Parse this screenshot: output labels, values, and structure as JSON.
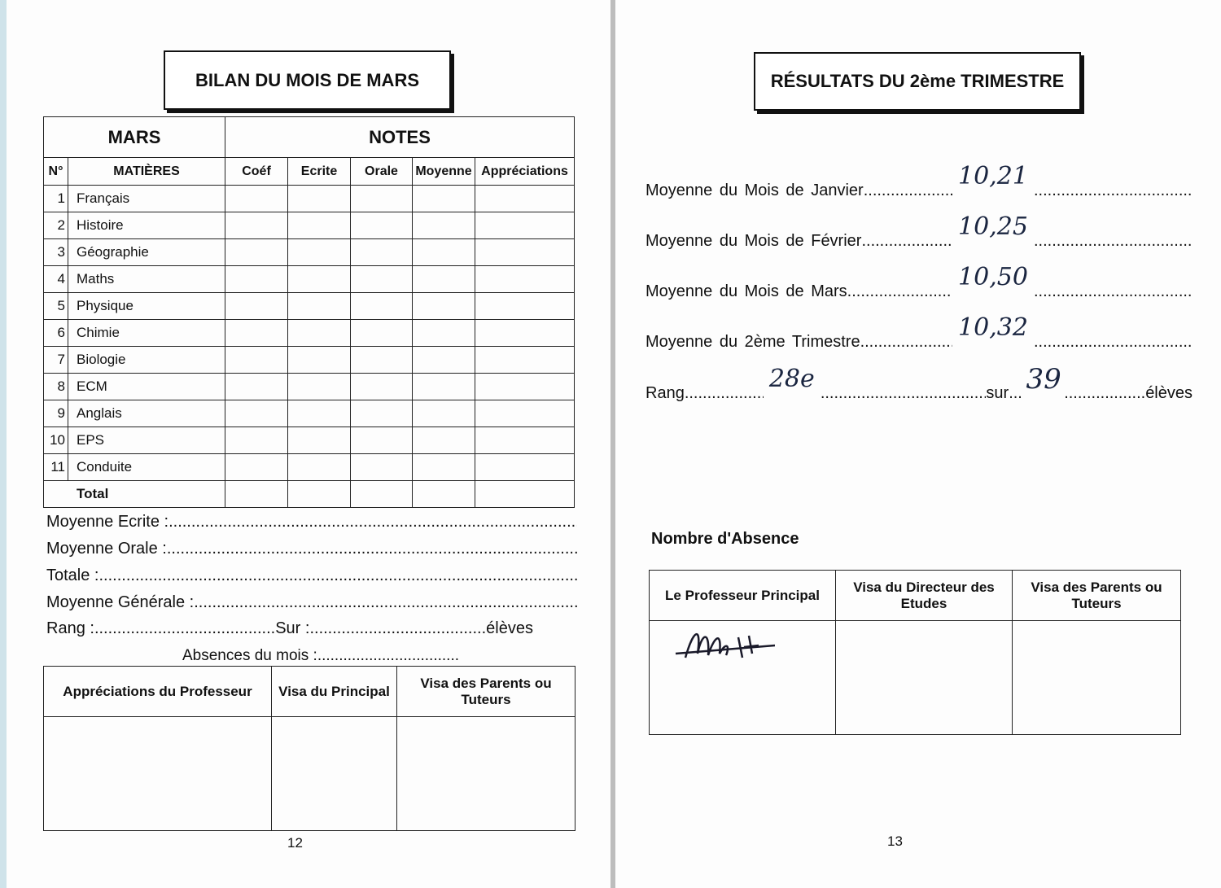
{
  "left": {
    "title": "BILAN DU MOIS  DE MARS",
    "table": {
      "month": "MARS",
      "notes": "NOTES",
      "headers": [
        "N°",
        "MATIÈRES",
        "Coéf",
        "Ecrite",
        "Orale",
        "Moyenne",
        "Appréciations"
      ],
      "rows": [
        {
          "n": "1",
          "s": "Français"
        },
        {
          "n": "2",
          "s": "Histoire"
        },
        {
          "n": "3",
          "s": "Géographie"
        },
        {
          "n": "4",
          "s": "Maths"
        },
        {
          "n": "5",
          "s": "Physique"
        },
        {
          "n": "6",
          "s": "Chimie"
        },
        {
          "n": "7",
          "s": "Biologie"
        },
        {
          "n": "8",
          "s": "ECM"
        },
        {
          "n": "9",
          "s": "Anglais"
        },
        {
          "n": "10",
          "s": "EPS"
        },
        {
          "n": "11",
          "s": "Conduite"
        }
      ],
      "total": "Total"
    },
    "fields": [
      "Moyenne Ecrite :",
      "Moyenne Orale :",
      "Totale :",
      "Moyenne Générale :"
    ],
    "rang": "Rang :",
    "sur": "Sur :",
    "eleves": "élèves",
    "absences": "Absences du mois :",
    "visa": [
      "Appréciations du Professeur",
      "Visa du Principal",
      "Visa des Parents ou Tuteurs"
    ],
    "page_number": "12"
  },
  "right": {
    "title": "RÉSULTATS DU 2ème TRIMESTRE",
    "fields": [
      {
        "label": "Moyenne du Mois de Janvier",
        "value": "10,21"
      },
      {
        "label": "Moyenne du Mois de Février",
        "value": "10,25"
      },
      {
        "label": "Moyenne du Mois de Mars",
        "value": "10,50"
      },
      {
        "label": "Moyenne du 2ème Trimestre",
        "value": "10,32"
      }
    ],
    "rang_label": "Rang",
    "rang_value": "28e",
    "sur_label": "sur",
    "sur_value": "39",
    "eleves": "élèves",
    "absence_label": "Nombre d'Absence",
    "visa": [
      "Le Professeur Principal",
      "Visa du Directeur des Etudes",
      "Visa des Parents ou Tuteurs"
    ],
    "page_number": "13"
  }
}
